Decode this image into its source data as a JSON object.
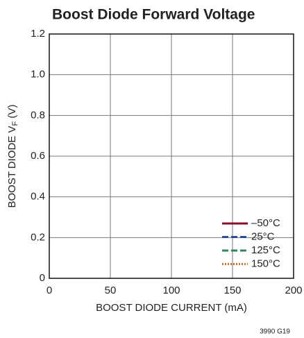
{
  "chart_data": {
    "type": "line",
    "title": "Boost Diode Forward Voltage",
    "xlabel": "BOOST DIODE CURRENT (mA)",
    "ylabel": [
      "BOOST DIODE V",
      "F",
      " (V)"
    ],
    "note": "3990 G19",
    "xlim": [
      0,
      200
    ],
    "xticks": [
      0,
      50,
      100,
      150,
      200
    ],
    "ylim": [
      0,
      1.2
    ],
    "yticks": [
      0,
      0.2,
      0.4,
      0.6,
      0.8,
      {
        "value": 1,
        "label": "1.0"
      },
      1.2
    ],
    "grid": true,
    "legend": "lower right",
    "x": [],
    "series": [
      {
        "name": "–50°C",
        "color": "#8b0a2a",
        "dash": "solid",
        "values": []
      },
      {
        "name": "25°C",
        "color": "#2b4c9b",
        "dash": "dashed",
        "values": []
      },
      {
        "name": "125°C",
        "color": "#2e8b57",
        "dash": "dashed",
        "values": []
      },
      {
        "name": "150°C",
        "color": "#c87a2a",
        "dash": "dotted",
        "values": []
      }
    ]
  }
}
